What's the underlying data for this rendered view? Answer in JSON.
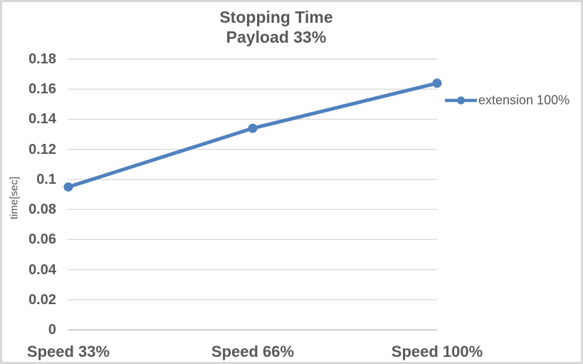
{
  "window": {
    "background": "#FFFFFF",
    "border_color": "#D8D8D8"
  },
  "chart": {
    "title": {
      "line1": "Stopping Time",
      "line2": "Payload 33%"
    },
    "y_axis": {
      "title": "time[sec]",
      "tick_labels": [
        "0",
        "0.02",
        "0.04",
        "0.06",
        "0.08",
        "0.1",
        "0.12",
        "0.14",
        "0.16",
        "0.18"
      ]
    },
    "x_axis": {
      "categories": [
        "Speed 33%",
        "Speed 66%",
        "Speed 100%"
      ]
    },
    "legend": {
      "label": "extension 100%"
    },
    "colors": {
      "series": "#4F81BD",
      "text": "#595959",
      "gridline": "#D9D9D9",
      "axis_line": "#BFBFBF"
    }
  },
  "chart_data": {
    "type": "line",
    "title": "Stopping Time",
    "subtitle": "Payload 33%",
    "categories": [
      "Speed 33%",
      "Speed 66%",
      "Speed 100%"
    ],
    "series": [
      {
        "name": "extension 100%",
        "values": [
          0.095,
          0.134,
          0.164
        ]
      }
    ],
    "xlabel": "",
    "ylabel": "time[sec]",
    "ylim": [
      0,
      0.18
    ],
    "ytick_step": 0.02,
    "grid": true,
    "legend_position": "right",
    "marker": "circle",
    "line_color": "#4F81BD"
  }
}
